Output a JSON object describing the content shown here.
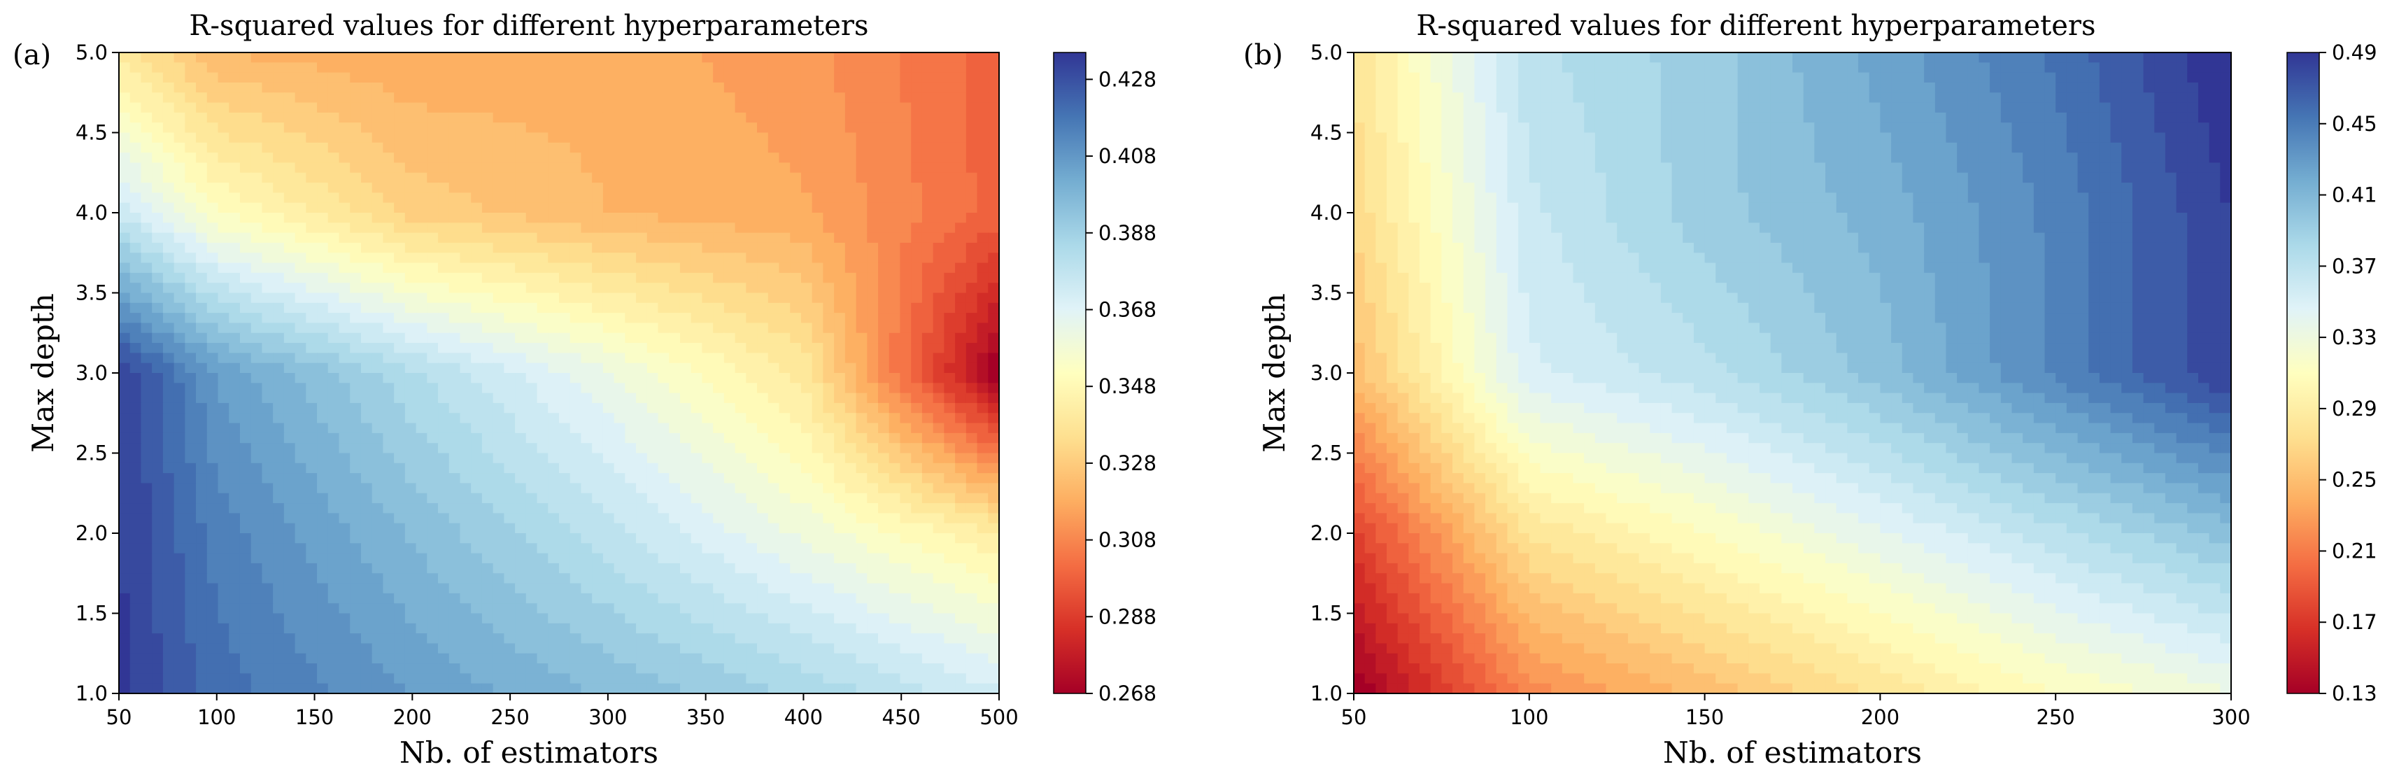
{
  "chart_data": [
    {
      "panel_label": "(a)",
      "type": "contourf",
      "title": "R-squared values for different hyperparameters",
      "xlabel": "Nb. of estimators",
      "ylabel": "Max depth",
      "xlim": [
        50,
        500
      ],
      "ylim": [
        1.0,
        5.0
      ],
      "x_ticks": [
        "50",
        "100",
        "150",
        "200",
        "250",
        "300",
        "350",
        "400",
        "450",
        "500"
      ],
      "y_ticks": [
        "1.0",
        "1.5",
        "2.0",
        "2.5",
        "3.0",
        "3.5",
        "4.0",
        "4.5",
        "5.0"
      ],
      "x": [
        50,
        100,
        200,
        300,
        400,
        500
      ],
      "y": [
        1,
        2,
        3,
        4,
        5
      ],
      "z": [
        [
          0.431,
          0.418,
          0.405,
          0.395,
          0.385,
          0.372
        ],
        [
          0.431,
          0.413,
          0.395,
          0.378,
          0.36,
          0.342
        ],
        [
          0.431,
          0.405,
          0.382,
          0.362,
          0.34,
          0.268
        ],
        [
          0.375,
          0.352,
          0.33,
          0.322,
          0.318,
          0.3
        ],
        [
          0.34,
          0.322,
          0.318,
          0.32,
          0.314,
          0.3
        ]
      ],
      "colorbar": {
        "min": 0.268,
        "max": 0.435,
        "ticks": [
          "0.428",
          "0.408",
          "0.388",
          "0.368",
          "0.348",
          "0.328",
          "0.308",
          "0.288",
          "0.268"
        ]
      }
    },
    {
      "panel_label": "(b)",
      "type": "contourf",
      "title": "R-squared values for different hyperparameters",
      "xlabel": "Nb. of estimators",
      "ylabel": "Max depth",
      "xlim": [
        50,
        300
      ],
      "ylim": [
        1.0,
        5.0
      ],
      "x_ticks": [
        "50",
        "100",
        "150",
        "200",
        "250",
        "300"
      ],
      "y_ticks": [
        "1.0",
        "1.5",
        "2.0",
        "2.5",
        "3.0",
        "3.5",
        "4.0",
        "4.5",
        "5.0"
      ],
      "x": [
        50,
        100,
        150,
        200,
        250,
        300
      ],
      "y": [
        1,
        2,
        3,
        4,
        5
      ],
      "z": [
        [
          0.13,
          0.22,
          0.25,
          0.28,
          0.31,
          0.33
        ],
        [
          0.18,
          0.28,
          0.31,
          0.34,
          0.37,
          0.4
        ],
        [
          0.25,
          0.35,
          0.37,
          0.4,
          0.44,
          0.48
        ],
        [
          0.27,
          0.36,
          0.39,
          0.41,
          0.44,
          0.48
        ],
        [
          0.28,
          0.37,
          0.39,
          0.42,
          0.45,
          0.49
        ]
      ],
      "colorbar": {
        "min": 0.13,
        "max": 0.49,
        "ticks": [
          "0.49",
          "0.45",
          "0.41",
          "0.37",
          "0.33",
          "0.29",
          "0.25",
          "0.21",
          "0.17",
          "0.13"
        ]
      }
    }
  ]
}
